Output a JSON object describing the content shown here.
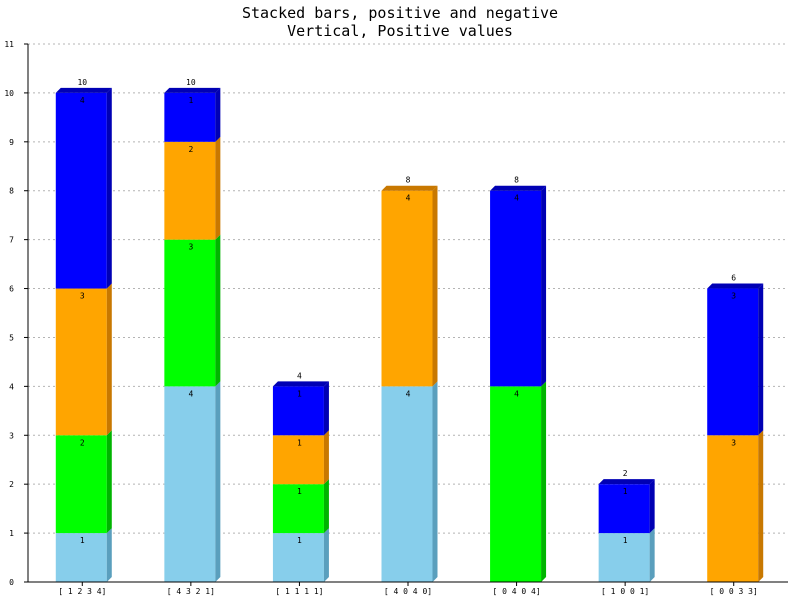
{
  "chart_data": {
    "type": "bar",
    "stacked": true,
    "three_d": true,
    "title": "Stacked bars, positive and negative",
    "subtitle": "Vertical, Positive values",
    "xlabel": "",
    "ylabel": "",
    "ylim": [
      0,
      11
    ],
    "yticks": [
      "0",
      "1",
      "2",
      "3",
      "4",
      "5",
      "6",
      "7",
      "8",
      "9",
      "10",
      "11"
    ],
    "grid": "horizontal dotted",
    "categories": [
      "[ 1  2  3  4]",
      "[ 4  3  2  1]",
      "[ 1  1  1  1]",
      "[ 4  0  4  0]",
      "[ 0  4  0  4]",
      "[ 1  0  0  1]",
      "[ 0  0  3  3]"
    ],
    "series": [
      {
        "values": [
          1,
          4,
          1,
          4,
          0,
          1,
          0
        ],
        "color": "#87ceeb",
        "side_color": "#5a9fbd"
      },
      {
        "values": [
          2,
          3,
          1,
          0,
          4,
          0,
          0
        ],
        "color": "#00ff00",
        "side_color": "#00b400"
      },
      {
        "values": [
          3,
          2,
          1,
          4,
          0,
          0,
          3
        ],
        "color": "#ffa500",
        "side_color": "#c87800"
      },
      {
        "values": [
          4,
          1,
          1,
          0,
          4,
          1,
          3
        ],
        "color": "#0000ff",
        "side_color": "#0000b4"
      }
    ],
    "totals": [
      "10",
      "10",
      "4",
      "8",
      "8",
      "2",
      "6"
    ]
  }
}
